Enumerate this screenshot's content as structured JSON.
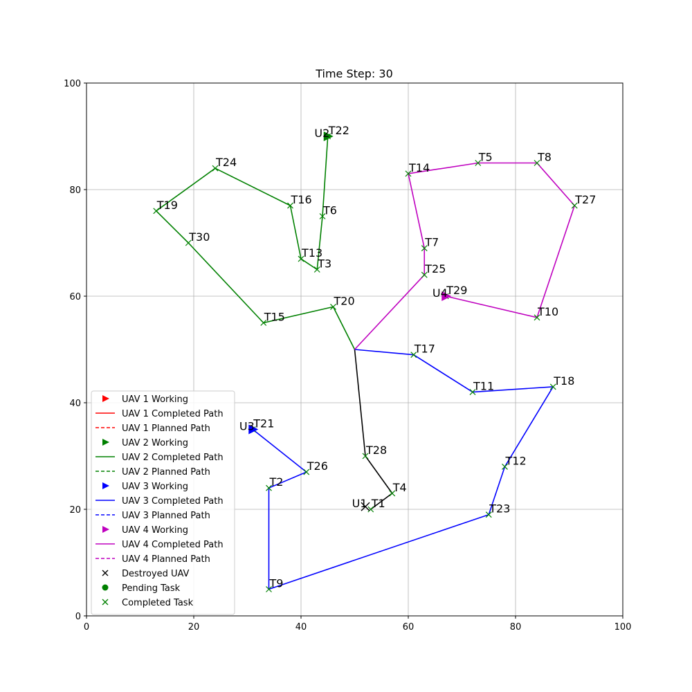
{
  "chart_data": {
    "type": "scatter",
    "title": "Time Step: 30",
    "xlabel": "",
    "ylabel": "",
    "xlim": [
      0,
      100
    ],
    "ylim": [
      0,
      100
    ],
    "xticks": [
      0,
      20,
      40,
      60,
      80,
      100
    ],
    "yticks": [
      0,
      20,
      40,
      60,
      80,
      100
    ],
    "grid": true,
    "legend_position": "lower-left",
    "colors": {
      "uav1": "#ff0000",
      "uav2": "#008000",
      "uav3": "#0000ff",
      "uav4": "#bf00bf",
      "destroyed": "#000000"
    },
    "depot": [
      50,
      50
    ],
    "tasks": [
      {
        "label": "T1",
        "x": 53,
        "y": 20
      },
      {
        "label": "T2",
        "x": 34,
        "y": 24
      },
      {
        "label": "T3",
        "x": 43,
        "y": 65
      },
      {
        "label": "T4",
        "x": 57,
        "y": 23
      },
      {
        "label": "T5",
        "x": 73,
        "y": 85
      },
      {
        "label": "T6",
        "x": 44,
        "y": 75
      },
      {
        "label": "T7",
        "x": 63,
        "y": 69
      },
      {
        "label": "T8",
        "x": 84,
        "y": 85
      },
      {
        "label": "T9",
        "x": 34,
        "y": 5
      },
      {
        "label": "T10",
        "x": 84,
        "y": 56
      },
      {
        "label": "T11",
        "x": 72,
        "y": 42
      },
      {
        "label": "T12",
        "x": 78,
        "y": 28
      },
      {
        "label": "T13",
        "x": 40,
        "y": 67
      },
      {
        "label": "T14",
        "x": 60,
        "y": 83
      },
      {
        "label": "T15",
        "x": 33,
        "y": 55
      },
      {
        "label": "T16",
        "x": 38,
        "y": 77
      },
      {
        "label": "T17",
        "x": 61,
        "y": 49
      },
      {
        "label": "T18",
        "x": 87,
        "y": 43
      },
      {
        "label": "T19",
        "x": 13,
        "y": 76
      },
      {
        "label": "T20",
        "x": 46,
        "y": 58
      },
      {
        "label": "T21",
        "x": 31,
        "y": 35
      },
      {
        "label": "T22",
        "x": 45,
        "y": 90
      },
      {
        "label": "T23",
        "x": 75,
        "y": 19
      },
      {
        "label": "T24",
        "x": 24,
        "y": 84
      },
      {
        "label": "T25",
        "x": 63,
        "y": 64
      },
      {
        "label": "T26",
        "x": 41,
        "y": 27
      },
      {
        "label": "T27",
        "x": 91,
        "y": 77
      },
      {
        "label": "T28",
        "x": 52,
        "y": 30
      },
      {
        "label": "T29",
        "x": 67,
        "y": 60
      },
      {
        "label": "T30",
        "x": 19,
        "y": 70
      }
    ],
    "paths": [
      {
        "uav": "U1",
        "color": "#000000",
        "status": "destroyed",
        "points": [
          [
            50,
            50
          ],
          [
            52,
            30
          ],
          [
            57,
            23
          ],
          [
            53,
            20
          ]
        ],
        "position": [
          52,
          20.5
        ]
      },
      {
        "uav": "U2",
        "color": "#008000",
        "status": "working",
        "points": [
          [
            50,
            50
          ],
          [
            46,
            58
          ],
          [
            33,
            55
          ],
          [
            19,
            70
          ],
          [
            13,
            76
          ],
          [
            24,
            84
          ],
          [
            38,
            77
          ],
          [
            40,
            67
          ],
          [
            43,
            65
          ],
          [
            44,
            75
          ],
          [
            45,
            90
          ]
        ],
        "position": [
          45,
          90
        ]
      },
      {
        "uav": "U3",
        "color": "#0000ff",
        "status": "working",
        "points": [
          [
            50,
            50
          ],
          [
            61,
            49
          ],
          [
            72,
            42
          ],
          [
            87,
            43
          ],
          [
            78,
            28
          ],
          [
            75,
            19
          ],
          [
            34,
            5
          ],
          [
            34,
            24
          ],
          [
            41,
            27
          ],
          [
            31,
            35
          ]
        ],
        "position": [
          31,
          35
        ]
      },
      {
        "uav": "U4",
        "color": "#bf00bf",
        "status": "working",
        "points": [
          [
            50,
            50
          ],
          [
            63,
            64
          ],
          [
            63,
            69
          ],
          [
            60,
            83
          ],
          [
            73,
            85
          ],
          [
            84,
            85
          ],
          [
            91,
            77
          ],
          [
            84,
            56
          ],
          [
            67,
            60
          ]
        ],
        "position": [
          67,
          60
        ]
      }
    ],
    "uav_labels": [
      {
        "text": "U1",
        "x": 49.5,
        "y": 20.5
      },
      {
        "text": "U2",
        "x": 42.5,
        "y": 90
      },
      {
        "text": "U3",
        "x": 28.5,
        "y": 35
      },
      {
        "text": "U4",
        "x": 64.5,
        "y": 60
      }
    ],
    "legend": [
      {
        "label": "UAV 1 Working",
        "kind": "triangle",
        "color": "#ff0000"
      },
      {
        "label": "UAV 1 Completed Path",
        "kind": "solid",
        "color": "#ff0000"
      },
      {
        "label": "UAV 1 Planned Path",
        "kind": "dashed",
        "color": "#ff0000"
      },
      {
        "label": "UAV 2 Working",
        "kind": "triangle",
        "color": "#008000"
      },
      {
        "label": "UAV 2 Completed Path",
        "kind": "solid",
        "color": "#008000"
      },
      {
        "label": "UAV 2 Planned Path",
        "kind": "dashed",
        "color": "#008000"
      },
      {
        "label": "UAV 3 Working",
        "kind": "triangle",
        "color": "#0000ff"
      },
      {
        "label": "UAV 3 Completed Path",
        "kind": "solid",
        "color": "#0000ff"
      },
      {
        "label": "UAV 3 Planned Path",
        "kind": "dashed",
        "color": "#0000ff"
      },
      {
        "label": "UAV 4 Working",
        "kind": "triangle",
        "color": "#bf00bf"
      },
      {
        "label": "UAV 4 Completed Path",
        "kind": "solid",
        "color": "#bf00bf"
      },
      {
        "label": "UAV 4 Planned Path",
        "kind": "dashed",
        "color": "#bf00bf"
      },
      {
        "label": "Destroyed UAV",
        "kind": "x",
        "color": "#000000"
      },
      {
        "label": "Pending Task",
        "kind": "circle",
        "color": "#008000"
      },
      {
        "label": "Completed Task",
        "kind": "x",
        "color": "#008000"
      }
    ]
  }
}
